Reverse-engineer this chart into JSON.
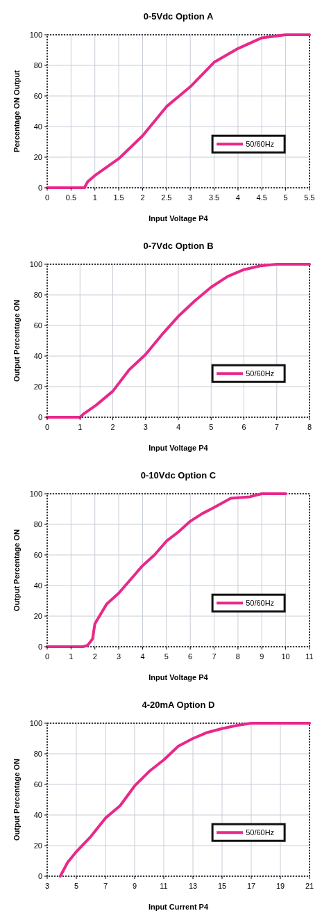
{
  "chart_data": [
    {
      "type": "line",
      "title": "0-5Vdc Option A",
      "xlabel": "Input Voltage P4",
      "ylabel": "Percentage ON Output",
      "xlim": [
        0,
        5.5
      ],
      "xticks": [
        0,
        0.5,
        1,
        1.5,
        2,
        2.5,
        3,
        3.5,
        4,
        4.5,
        5,
        5.5
      ],
      "ylim": [
        0,
        100
      ],
      "yticks": [
        0,
        20,
        40,
        60,
        80,
        100
      ],
      "grid": true,
      "legend": "right",
      "series": [
        {
          "name": "50/60Hz",
          "color": "#e8288a",
          "x": [
            0,
            0.78,
            0.85,
            1,
            1.5,
            2,
            2.5,
            3,
            3.5,
            4,
            4.5,
            5,
            5.5
          ],
          "values": [
            0,
            0,
            4,
            8,
            19,
            34,
            53,
            66,
            82,
            91,
            98,
            100,
            100
          ]
        }
      ]
    },
    {
      "type": "line",
      "title": "0-7Vdc Option B",
      "xlabel": "Input Voltage P4",
      "ylabel": "Output Percentage ON",
      "xlim": [
        0,
        8
      ],
      "xticks": [
        0,
        1,
        2,
        3,
        4,
        5,
        6,
        7,
        8
      ],
      "ylim": [
        0,
        100
      ],
      "yticks": [
        0,
        20,
        40,
        60,
        80,
        100
      ],
      "grid": true,
      "legend": "right",
      "series": [
        {
          "name": "50/60Hz",
          "color": "#e8288a",
          "x": [
            0,
            1,
            1.1,
            1.5,
            2,
            2.5,
            3,
            3.5,
            4,
            4.5,
            5,
            5.5,
            6,
            6.5,
            7,
            8
          ],
          "values": [
            0,
            0,
            2,
            8,
            17,
            31,
            41,
            54,
            66,
            76,
            85,
            92,
            96.5,
            99,
            100,
            100
          ]
        }
      ]
    },
    {
      "type": "line",
      "title": "0-10Vdc Option C",
      "xlabel": "Input Voltage P4",
      "ylabel": "Output Percentage ON",
      "xlim": [
        0,
        11
      ],
      "xticks": [
        0,
        1,
        2,
        3,
        4,
        5,
        6,
        7,
        8,
        9,
        10,
        11
      ],
      "ylim": [
        0,
        100
      ],
      "yticks": [
        0,
        20,
        40,
        60,
        80,
        100
      ],
      "grid": true,
      "legend": "right",
      "series": [
        {
          "name": "50/60Hz",
          "color": "#e8288a",
          "x": [
            0,
            1.5,
            1.7,
            1.9,
            2,
            2.5,
            3,
            3.5,
            4,
            4.5,
            5,
            5.5,
            6,
            6.5,
            7,
            7.7,
            8.5,
            9,
            10
          ],
          "values": [
            0,
            0,
            1,
            5,
            15,
            28,
            35,
            44,
            53,
            60,
            69,
            75,
            82,
            87,
            91,
            97,
            98,
            100,
            100
          ]
        }
      ]
    },
    {
      "type": "line",
      "title": "4-20mA  Option D",
      "xlabel": "Input Current P4",
      "ylabel": "Output Percentage ON",
      "xlim": [
        3,
        21
      ],
      "xticks": [
        3,
        5,
        7,
        9,
        11,
        13,
        15,
        17,
        19,
        21
      ],
      "ylim": [
        0,
        100
      ],
      "yticks": [
        0,
        20,
        40,
        60,
        80,
        100
      ],
      "grid": true,
      "legend": "right",
      "series": [
        {
          "name": "50/60Hz",
          "color": "#e8288a",
          "x": [
            3.9,
            4.4,
            5,
            6,
            7,
            8,
            9,
            10,
            11,
            12,
            13,
            14,
            15,
            16,
            17,
            21
          ],
          "values": [
            0,
            9,
            16,
            26,
            38,
            46,
            59,
            68.5,
            76,
            85,
            90,
            94,
            96.5,
            98.5,
            100,
            100
          ]
        }
      ]
    }
  ]
}
